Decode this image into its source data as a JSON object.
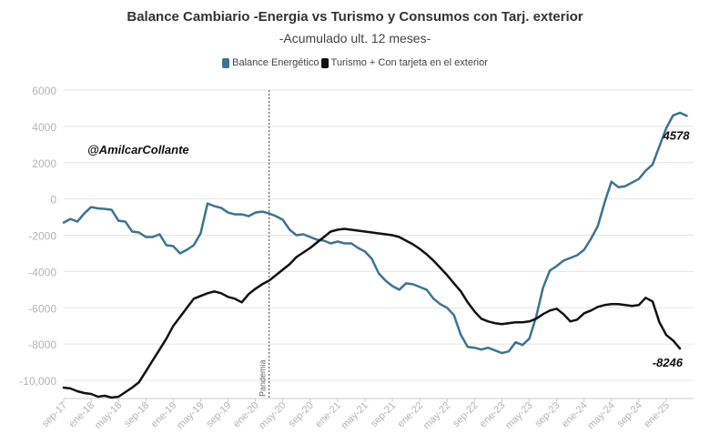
{
  "chart_data": {
    "type": "line",
    "title": "Balance Cambiario -Energia vs Turismo y Consumos con Tarj. exterior",
    "subtitle": "-Acumulado ult. 12 meses-",
    "author": "@AmilcarCollante",
    "annotation": "Pandemia",
    "annotation_x": "mar-20",
    "ylim": [
      -11000,
      6000
    ],
    "y_ticks": [
      6000,
      4000,
      2000,
      0,
      -2000,
      -4000,
      -6000,
      -8000,
      -10000
    ],
    "y_tick_labels": [
      "6000",
      "4000",
      "2000",
      "0",
      "-2000",
      "-4000",
      "-6000",
      "-8000",
      "-10,000"
    ],
    "x_tick_labels": [
      "sep-17",
      "ene-18",
      "may-18",
      "sep-18",
      "ene-19",
      "may-19",
      "sep-19",
      "ene-20",
      "may-20",
      "sep-20",
      "ene-21",
      "may-21",
      "sep-21",
      "ene-22",
      "may-22",
      "sep-22",
      "ene-23",
      "may-23",
      "sep-23",
      "ene-24",
      "may-24",
      "sep-24",
      "ene-25"
    ],
    "grid": true,
    "legend_position": "top",
    "series": [
      {
        "name": "Balance Energético",
        "color": "#3b7393",
        "end_label": "4578",
        "points": [
          [
            "2017-09",
            -1300
          ],
          [
            "2017-10",
            -1100
          ],
          [
            "2017-11",
            -1250
          ],
          [
            "2017-12",
            -800
          ],
          [
            "2018-01",
            -450
          ],
          [
            "2018-02",
            -520
          ],
          [
            "2018-03",
            -550
          ],
          [
            "2018-04",
            -600
          ],
          [
            "2018-05",
            -1200
          ],
          [
            "2018-06",
            -1250
          ],
          [
            "2018-07",
            -1800
          ],
          [
            "2018-08",
            -1850
          ],
          [
            "2018-09",
            -2100
          ],
          [
            "2018-10",
            -2100
          ],
          [
            "2018-11",
            -1950
          ],
          [
            "2018-12",
            -2550
          ],
          [
            "2019-01",
            -2600
          ],
          [
            "2019-02",
            -3000
          ],
          [
            "2019-03",
            -2800
          ],
          [
            "2019-04",
            -2550
          ],
          [
            "2019-05",
            -1900
          ],
          [
            "2019-06",
            -250
          ],
          [
            "2019-07",
            -400
          ],
          [
            "2019-08",
            -500
          ],
          [
            "2019-09",
            -750
          ],
          [
            "2019-10",
            -850
          ],
          [
            "2019-11",
            -850
          ],
          [
            "2019-12",
            -950
          ],
          [
            "2020-01",
            -750
          ],
          [
            "2020-02",
            -700
          ],
          [
            "2020-03",
            -800
          ],
          [
            "2020-04",
            -950
          ],
          [
            "2020-05",
            -1150
          ],
          [
            "2020-06",
            -1700
          ],
          [
            "2020-07",
            -2000
          ],
          [
            "2020-08",
            -1950
          ],
          [
            "2020-09",
            -2100
          ],
          [
            "2020-10",
            -2250
          ],
          [
            "2020-11",
            -2300
          ],
          [
            "2020-12",
            -2450
          ],
          [
            "2021-01",
            -2350
          ],
          [
            "2021-02",
            -2450
          ],
          [
            "2021-03",
            -2450
          ],
          [
            "2021-04",
            -2700
          ],
          [
            "2021-05",
            -2900
          ],
          [
            "2021-06",
            -3300
          ],
          [
            "2021-07",
            -4100
          ],
          [
            "2021-08",
            -4500
          ],
          [
            "2021-09",
            -4800
          ],
          [
            "2021-10",
            -5000
          ],
          [
            "2021-11",
            -4650
          ],
          [
            "2021-12",
            -4700
          ],
          [
            "2022-01",
            -4850
          ],
          [
            "2022-02",
            -5000
          ],
          [
            "2022-03",
            -5500
          ],
          [
            "2022-04",
            -5800
          ],
          [
            "2022-05",
            -6000
          ],
          [
            "2022-06",
            -6400
          ],
          [
            "2022-07",
            -7500
          ],
          [
            "2022-08",
            -8150
          ],
          [
            "2022-09",
            -8200
          ],
          [
            "2022-10",
            -8300
          ],
          [
            "2022-11",
            -8200
          ],
          [
            "2022-12",
            -8350
          ],
          [
            "2023-01",
            -8500
          ],
          [
            "2023-02",
            -8400
          ],
          [
            "2023-03",
            -7900
          ],
          [
            "2023-04",
            -8050
          ],
          [
            "2023-05",
            -7700
          ],
          [
            "2023-06",
            -6500
          ],
          [
            "2023-07",
            -4900
          ],
          [
            "2023-08",
            -3950
          ],
          [
            "2023-09",
            -3700
          ],
          [
            "2023-10",
            -3400
          ],
          [
            "2023-11",
            -3250
          ],
          [
            "2023-12",
            -3100
          ],
          [
            "2024-01",
            -2800
          ],
          [
            "2024-02",
            -2200
          ],
          [
            "2024-03",
            -1500
          ],
          [
            "2024-04",
            -200
          ],
          [
            "2024-05",
            950
          ],
          [
            "2024-06",
            650
          ],
          [
            "2024-07",
            700
          ],
          [
            "2024-08",
            900
          ],
          [
            "2024-09",
            1100
          ],
          [
            "2024-10",
            1550
          ],
          [
            "2024-11",
            1900
          ],
          [
            "2024-12",
            2900
          ],
          [
            "2025-01",
            3900
          ],
          [
            "2025-02",
            4600
          ],
          [
            "2025-03",
            4750
          ],
          [
            "2025-04",
            4578
          ]
        ]
      },
      {
        "name": "Turismo + Con tarjeta en el exterior",
        "color": "#111111",
        "end_label": "-8246",
        "points": [
          [
            "2017-09",
            -10400
          ],
          [
            "2017-10",
            -10450
          ],
          [
            "2017-11",
            -10600
          ],
          [
            "2017-12",
            -10700
          ],
          [
            "2018-01",
            -10750
          ],
          [
            "2018-02",
            -10900
          ],
          [
            "2018-03",
            -10850
          ],
          [
            "2018-04",
            -10950
          ],
          [
            "2018-05",
            -10900
          ],
          [
            "2018-06",
            -10650
          ],
          [
            "2018-07",
            -10400
          ],
          [
            "2018-08",
            -10100
          ],
          [
            "2018-09",
            -9500
          ],
          [
            "2018-10",
            -8900
          ],
          [
            "2018-11",
            -8300
          ],
          [
            "2018-12",
            -7700
          ],
          [
            "2019-01",
            -7000
          ],
          [
            "2019-02",
            -6500
          ],
          [
            "2019-03",
            -6000
          ],
          [
            "2019-04",
            -5500
          ],
          [
            "2019-05",
            -5350
          ],
          [
            "2019-06",
            -5200
          ],
          [
            "2019-07",
            -5100
          ],
          [
            "2019-08",
            -5200
          ],
          [
            "2019-09",
            -5400
          ],
          [
            "2019-10",
            -5500
          ],
          [
            "2019-11",
            -5700
          ],
          [
            "2019-12",
            -5250
          ],
          [
            "2020-01",
            -4950
          ],
          [
            "2020-02",
            -4700
          ],
          [
            "2020-03",
            -4500
          ],
          [
            "2020-04",
            -4200
          ],
          [
            "2020-05",
            -3900
          ],
          [
            "2020-06",
            -3600
          ],
          [
            "2020-07",
            -3200
          ],
          [
            "2020-08",
            -2950
          ],
          [
            "2020-09",
            -2700
          ],
          [
            "2020-10",
            -2400
          ],
          [
            "2020-11",
            -2100
          ],
          [
            "2020-12",
            -1800
          ],
          [
            "2021-01",
            -1700
          ],
          [
            "2021-02",
            -1650
          ],
          [
            "2021-03",
            -1700
          ],
          [
            "2021-04",
            -1750
          ],
          [
            "2021-05",
            -1800
          ],
          [
            "2021-06",
            -1850
          ],
          [
            "2021-07",
            -1900
          ],
          [
            "2021-08",
            -1950
          ],
          [
            "2021-09",
            -2000
          ],
          [
            "2021-10",
            -2100
          ],
          [
            "2021-11",
            -2300
          ],
          [
            "2021-12",
            -2500
          ],
          [
            "2022-01",
            -2750
          ],
          [
            "2022-02",
            -3050
          ],
          [
            "2022-03",
            -3400
          ],
          [
            "2022-04",
            -3800
          ],
          [
            "2022-05",
            -4200
          ],
          [
            "2022-06",
            -4650
          ],
          [
            "2022-07",
            -5100
          ],
          [
            "2022-08",
            -5700
          ],
          [
            "2022-09",
            -6200
          ],
          [
            "2022-10",
            -6600
          ],
          [
            "2022-11",
            -6750
          ],
          [
            "2022-12",
            -6850
          ],
          [
            "2023-01",
            -6900
          ],
          [
            "2023-02",
            -6850
          ],
          [
            "2023-03",
            -6800
          ],
          [
            "2023-04",
            -6800
          ],
          [
            "2023-05",
            -6750
          ],
          [
            "2023-06",
            -6600
          ],
          [
            "2023-07",
            -6350
          ],
          [
            "2023-08",
            -6150
          ],
          [
            "2023-09",
            -6050
          ],
          [
            "2023-10",
            -6350
          ],
          [
            "2023-11",
            -6750
          ],
          [
            "2023-12",
            -6650
          ],
          [
            "2024-01",
            -6300
          ],
          [
            "2024-02",
            -6150
          ],
          [
            "2024-03",
            -5950
          ],
          [
            "2024-04",
            -5850
          ],
          [
            "2024-05",
            -5800
          ],
          [
            "2024-06",
            -5800
          ],
          [
            "2024-07",
            -5850
          ],
          [
            "2024-08",
            -5900
          ],
          [
            "2024-09",
            -5850
          ],
          [
            "2024-10",
            -5450
          ],
          [
            "2024-11",
            -5650
          ],
          [
            "2024-12",
            -6800
          ],
          [
            "2025-01",
            -7500
          ],
          [
            "2025-02",
            -7800
          ],
          [
            "2025-03",
            -8246
          ]
        ]
      }
    ]
  }
}
